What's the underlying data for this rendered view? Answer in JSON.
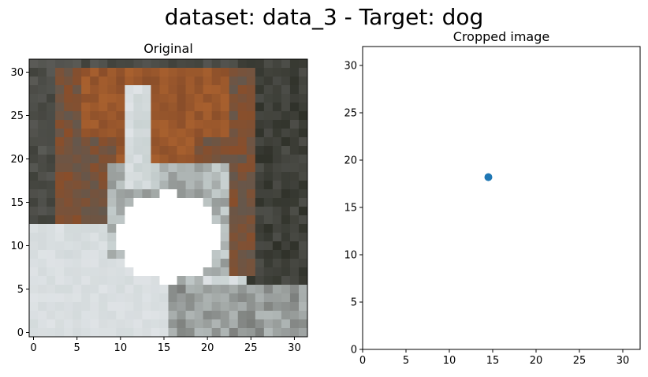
{
  "suptitle": "dataset: data_3 - Target: dog",
  "chart_data": [
    {
      "type": "image",
      "title": "Original",
      "xlim": [
        -0.5,
        31.5
      ],
      "ylim": [
        31.5,
        -0.5
      ],
      "xticks": [
        "0",
        "5",
        "10",
        "15",
        "20",
        "25",
        "30"
      ],
      "yticks": [
        "0",
        "5",
        "10",
        "15",
        "20",
        "25",
        "30"
      ],
      "image": {
        "rows": 32,
        "cols": 32,
        "subject": "dog",
        "palette": {
          "dark": "#2f3129",
          "gray": "#5a5a56",
          "brown": "#8a4e2a",
          "rust": "#a8602e",
          "light": "#c9d2d2",
          "pale": "#dfe3e6",
          "white": "#ffffff"
        },
        "masked_region": {
          "center": [
            20.0,
            15.5
          ],
          "radius": 5.5,
          "color": "#ffffff"
        }
      }
    },
    {
      "type": "scatter",
      "title": "Cropped image",
      "xlim": [
        0,
        32
      ],
      "ylim": [
        32,
        0
      ],
      "xticks": [
        "0",
        "5",
        "10",
        "15",
        "20",
        "25",
        "30"
      ],
      "yticks": [
        "0",
        "5",
        "10",
        "15",
        "20",
        "25",
        "30"
      ],
      "points": [
        {
          "x": 14.5,
          "y": 18.2
        }
      ],
      "color": "#1f77b4"
    }
  ]
}
